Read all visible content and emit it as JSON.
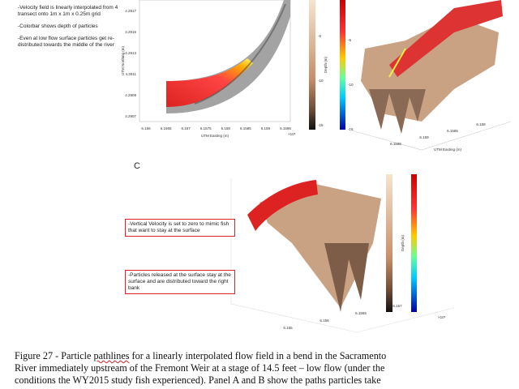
{
  "notes": [
    "-Velocity field is linearly interpolated from 4 transect onto 1m x 1m x 0.25m grid",
    "-Colorbar shows depth of particles",
    "-Even at low flow surface particles get re-distributed towards the middle of the river"
  ],
  "panel_a": {
    "x_label": "UTM Easting (m)",
    "y_label": "UTM Northing (m)",
    "x_exponent": "×10⁵",
    "xticks": [
      "6.156",
      "6.1565",
      "6.157",
      "6.1575",
      "6.158",
      "6.1585",
      "6.159",
      "6.1595"
    ],
    "yticks": [
      "4.2917",
      "4.2915",
      "4.2913",
      "4.2911",
      "4.2909",
      "4.2907"
    ]
  },
  "colorbar": {
    "label": "Depth (m)",
    "ticks": [
      "-5",
      "-10",
      "-15"
    ]
  },
  "panel_b": {
    "x_label": "UTM Easting (m)",
    "xticks": [
      "6.1595",
      "6.159",
      "6.1585",
      "6.158"
    ]
  },
  "panel_c": {
    "label": "C",
    "xticks": [
      "6.155",
      "6.156",
      "6.1565",
      "6.157"
    ],
    "exponent": "×10⁵"
  },
  "callouts": [
    "-Vertical Velocity is set to zero to mimic fish that want to stay at the surface",
    "-Particles released at the surface stay at the surface and are distributed toward the right bank"
  ],
  "caption": {
    "prefix": "Figure 27 - Particle ",
    "underlined": "pathlines",
    "lines": [
      " for a linearly interpolated flow field in a bend in the Sacramento",
      "River immediately upstream of the Fremont Weir at a stage of 14.5 feet – low flow (under the",
      "conditions the WY2015 study fish experienced).  Panel A and B show the paths particles take"
    ]
  }
}
